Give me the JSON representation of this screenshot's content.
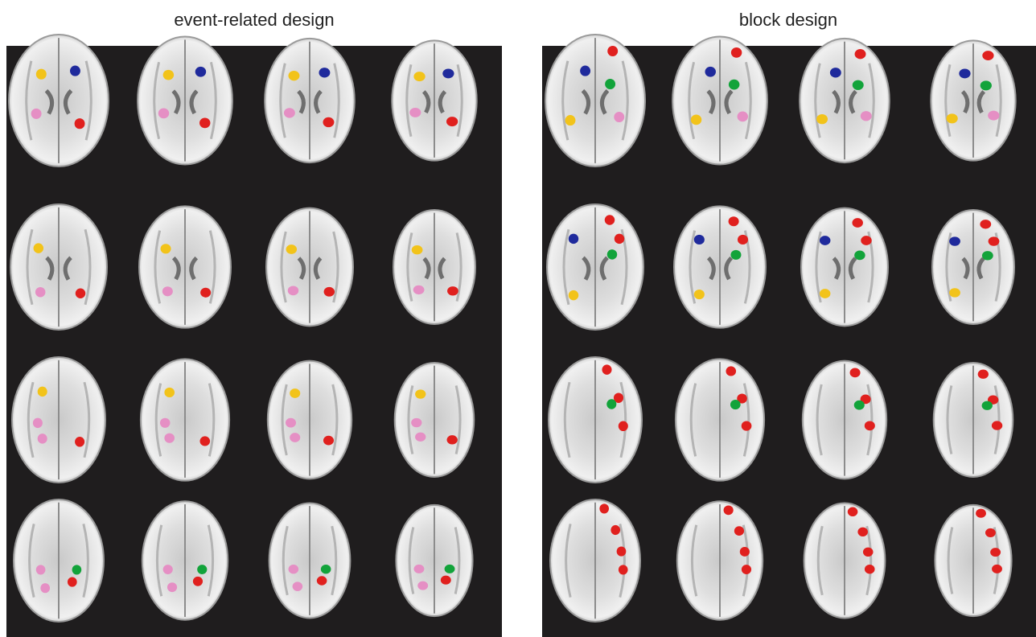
{
  "panels": [
    {
      "title": "event-related design"
    },
    {
      "title": "block design"
    }
  ]
}
